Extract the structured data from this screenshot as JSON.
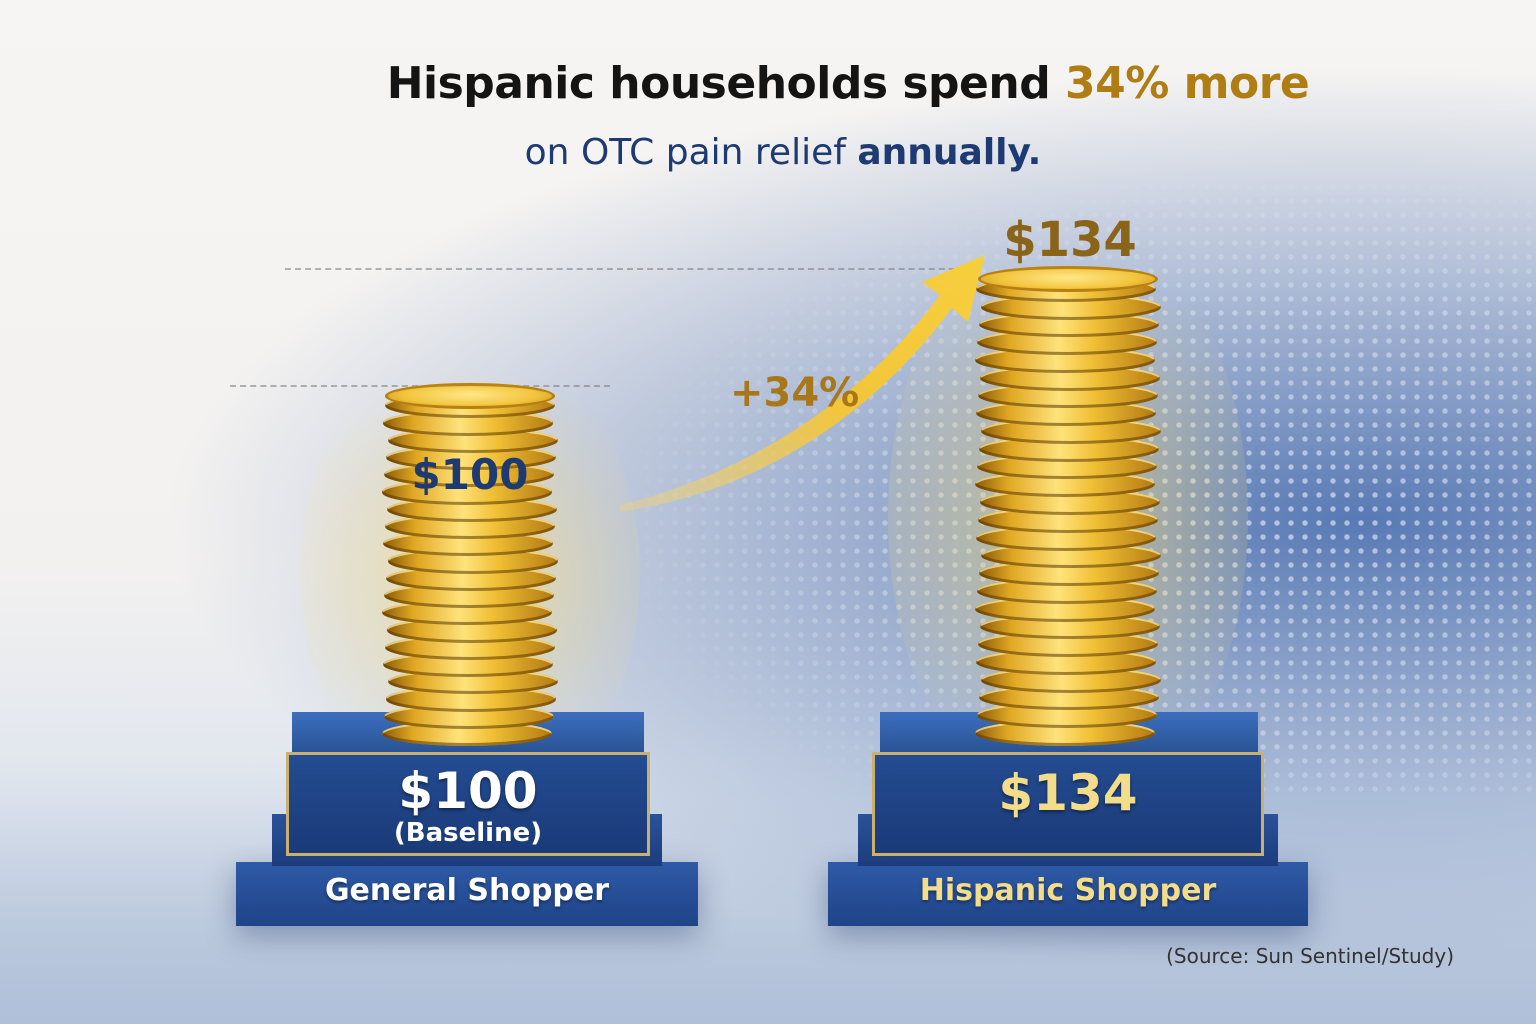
{
  "headline": {
    "line1_prefix": "Hispanic households spend ",
    "line1_highlight": "34% more",
    "line2_regular": "on OTC pain relief ",
    "line2_bold": "annually."
  },
  "change_label": "+34%",
  "source": "(Source: Sun Sentinel/Study)",
  "colors": {
    "navy": "#1d3a72",
    "gold": "#b07d14",
    "pedestal_blue": "#244c92",
    "pedestal_label_gold": "#f3dc8a"
  },
  "chart_data": {
    "type": "bar",
    "categories": [
      "General Shopper",
      "Hispanic Shopper"
    ],
    "values": [
      100,
      134
    ],
    "data_labels": [
      "$100",
      "$134"
    ],
    "pedestal_values": [
      "$100",
      "$134"
    ],
    "pedestal_notes": [
      "(Baseline)",
      ""
    ],
    "unit": "$",
    "ylim": [
      0,
      134
    ],
    "grid": false,
    "legend": "none"
  }
}
